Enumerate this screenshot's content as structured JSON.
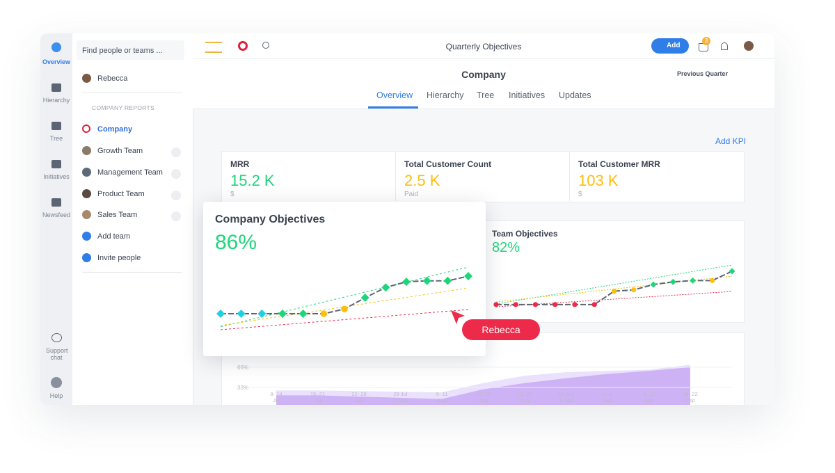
{
  "sidebar": {
    "rail": [
      "Overview",
      "Hierarchy",
      "Tree",
      "Initiatives",
      "Newsfeed"
    ],
    "support": "Support chat",
    "help": "Help",
    "search": "Find people or teams ...",
    "user": "Rebecca",
    "section": "COMPANY REPORTS",
    "teams": [
      "Company",
      "Growth Team",
      "Management Team",
      "Product Team",
      "Sales Team"
    ],
    "actions": [
      "Add team",
      "Invite people"
    ]
  },
  "topbar": {
    "title": "Quarterly Objectives",
    "add": "Add",
    "badge": "3"
  },
  "header": {
    "title": "Company",
    "period": "Previous Quarter",
    "tabs": [
      "Overview",
      "Hierarchy",
      "Tree",
      "Initiatives",
      "Updates"
    ]
  },
  "add_kpi": "Add KPI",
  "kpis": [
    {
      "label": "MRR",
      "value": "15.2 K",
      "unit": "$"
    },
    {
      "label": "Total Customer Count",
      "value": "2.5 K",
      "unit": "Paid"
    },
    {
      "label": "Total Customer MRR",
      "value": "103 K",
      "unit": "$"
    }
  ],
  "company_objectives": {
    "title": "Company Objectives",
    "value": "86%",
    "chart": {
      "type": "line",
      "ylim": [
        0,
        100
      ],
      "values": [
        20,
        20,
        20,
        20,
        20,
        20,
        25,
        37,
        48,
        54,
        55,
        55,
        60
      ],
      "point_colors": [
        "#1fd1e0",
        "#1fd1e0",
        "#1fd1e0",
        "#1ed67a",
        "#1ed67a",
        "#fbbf10",
        "#fbbf10",
        "#1ed67a",
        "#1ed67a",
        "#1ed67a",
        "#1ed67a",
        "#1ed67a",
        "#1ed67a"
      ],
      "point_shapes": [
        "diamond",
        "diamond",
        "diamond",
        "diamond",
        "diamond",
        "circle",
        "circle",
        "diamond",
        "diamond",
        "diamond",
        "diamond",
        "diamond",
        "diamond"
      ]
    }
  },
  "team_objectives": {
    "title": "Team Objectives",
    "value": "82%",
    "chart": {
      "type": "line",
      "ylim": [
        0,
        60
      ],
      "values": [
        10,
        10,
        10,
        10,
        10,
        10,
        20,
        21,
        25,
        27,
        28,
        28,
        35
      ],
      "point_colors": [
        "#ee2a4a",
        "#ee2a4a",
        "#ee2a4a",
        "#ee2a4a",
        "#ee2a4a",
        "#ee2a4a",
        "#fbbf10",
        "#fbbf10",
        "#1ed67a",
        "#1ed67a",
        "#1ed67a",
        "#fbbf10",
        "#1ed67a"
      ],
      "point_shapes": [
        "circle",
        "circle",
        "circle",
        "circle",
        "circle",
        "circle",
        "circle",
        "circle",
        "diamond",
        "diamond",
        "diamond",
        "circle",
        "diamond"
      ]
    }
  },
  "progress_chart": {
    "type": "area",
    "ylim": [
      0,
      100
    ],
    "yticks": [
      {
        "value": 66,
        "label": "66%"
      },
      {
        "value": 33,
        "label": "33%"
      }
    ],
    "categories": [
      [
        "8- 14",
        "Jul"
      ],
      [
        "15- 21",
        "Jul"
      ],
      [
        "22- 28",
        "Jul"
      ],
      [
        "29 Jul",
        "4 Aug"
      ],
      [
        "5- 11",
        "Aug"
      ],
      [
        "12- 18",
        "Aug"
      ],
      [
        "19- 25",
        "Aug"
      ],
      [
        "26 Aug",
        "1 Sep"
      ],
      [
        "2- 8",
        "Sep"
      ],
      [
        "9- 15",
        "Sep"
      ],
      [
        "16- 22",
        "Sep"
      ]
    ],
    "series": [
      {
        "color": "#e6dcfb",
        "values": [
          28,
          28,
          27,
          26,
          25,
          40,
          52,
          58,
          60,
          62,
          70
        ]
      },
      {
        "color": "#c9a9f4",
        "values": [
          20,
          20,
          18,
          16,
          14,
          30,
          40,
          48,
          55,
          60,
          66
        ]
      }
    ]
  },
  "cursor_label": "Rebecca"
}
